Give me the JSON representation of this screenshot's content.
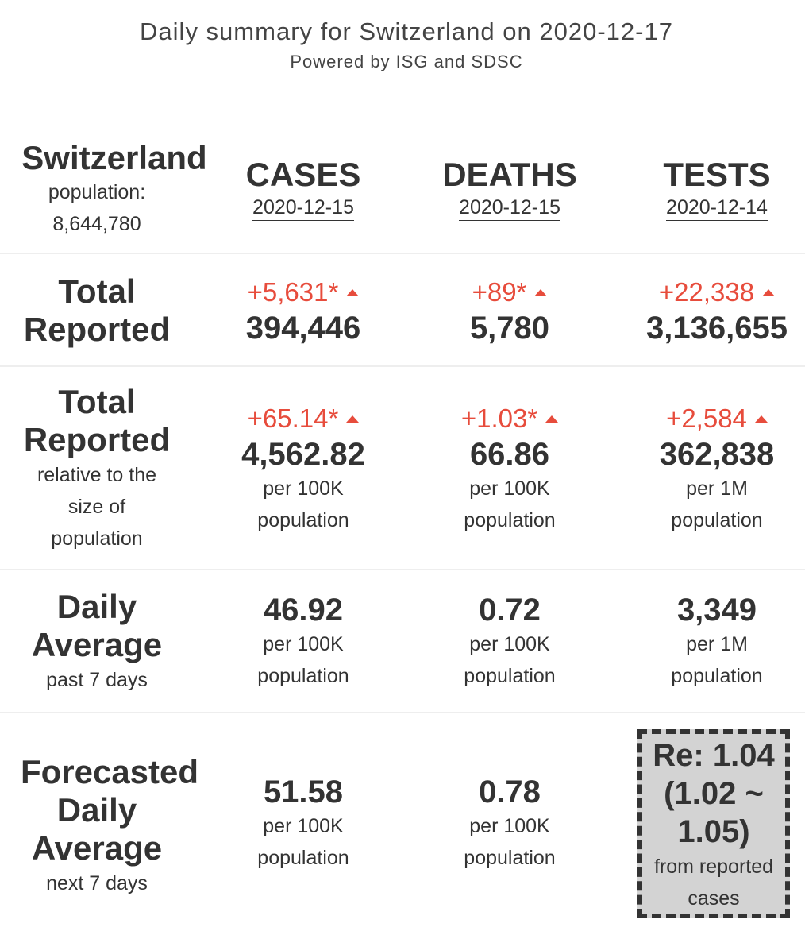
{
  "header": {
    "title": "Daily summary for Switzerland on 2020-12-17",
    "subtitle": "Powered by ISG and SDSC"
  },
  "country": {
    "name": "Switzerland",
    "population_label": "population:",
    "population": "8,644,780"
  },
  "columns": [
    {
      "name": "CASES",
      "date": "2020-12-15"
    },
    {
      "name": "DEATHS",
      "date": "2020-12-15"
    },
    {
      "name": "TESTS",
      "date": "2020-12-14"
    }
  ],
  "rows": {
    "total_reported": {
      "label_line1": "Total",
      "label_line2": "Reported",
      "values": [
        {
          "delta": "+5,631*",
          "value": "394,446"
        },
        {
          "delta": "+89*",
          "value": "5,780"
        },
        {
          "delta": "+22,338",
          "value": "3,136,655"
        }
      ]
    },
    "relative": {
      "label_line1": "Total",
      "label_line2": "Reported",
      "sub1": "relative to the",
      "sub2": "size of",
      "sub3": "population",
      "values": [
        {
          "delta": "+65.14*",
          "value": "4,562.82",
          "unit1": "per 100K",
          "unit2": "population"
        },
        {
          "delta": "+1.03*",
          "value": "66.86",
          "unit1": "per 100K",
          "unit2": "population"
        },
        {
          "delta": "+2,584",
          "value": "362,838",
          "unit1": "per 1M",
          "unit2": "population"
        }
      ]
    },
    "daily_average": {
      "label_line1": "Daily",
      "label_line2": "Average",
      "sub": "past 7 days",
      "values": [
        {
          "value": "46.92",
          "unit1": "per 100K",
          "unit2": "population"
        },
        {
          "value": "0.72",
          "unit1": "per 100K",
          "unit2": "population"
        },
        {
          "value": "3,349",
          "unit1": "per 1M",
          "unit2": "population"
        }
      ]
    },
    "forecast": {
      "label_line1": "Forecasted",
      "label_line2": "Daily",
      "label_line3": "Average",
      "sub": "next 7 days",
      "values": [
        {
          "value": "51.58",
          "unit1": "per 100K",
          "unit2": "population"
        },
        {
          "value": "0.78",
          "unit1": "per 100K",
          "unit2": "population"
        }
      ],
      "re": {
        "line1": "Re: 1.04",
        "line2": "(1.02 ~",
        "line3": "1.05)",
        "source1": "from reported",
        "source2": "cases"
      }
    }
  },
  "colors": {
    "increase": "#e74c3c",
    "text": "#333333",
    "re_box_bg": "#d3d3d3"
  }
}
